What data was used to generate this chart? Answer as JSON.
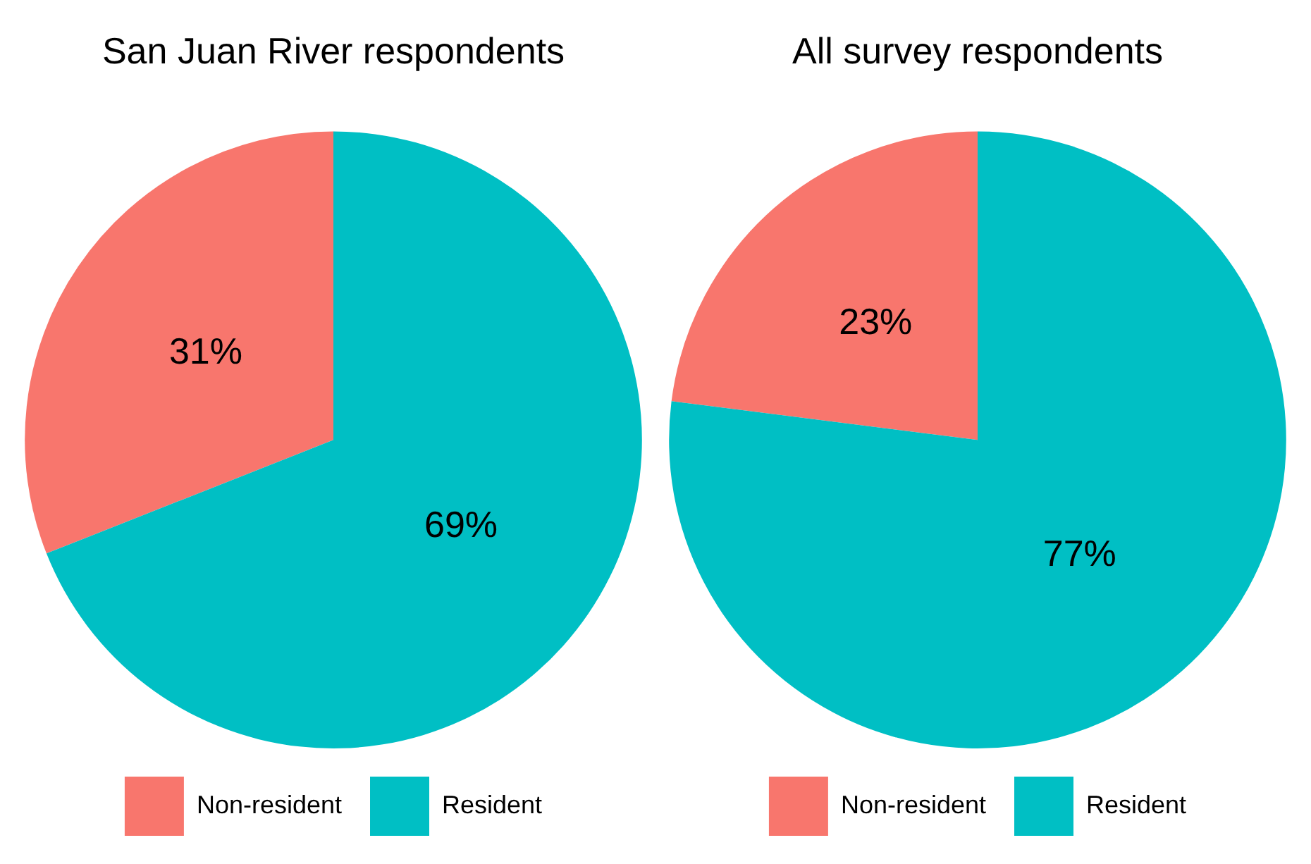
{
  "chart_data": [
    {
      "type": "pie",
      "title": "San Juan River respondents",
      "categories": [
        "Non-resident",
        "Resident"
      ],
      "values": [
        31,
        69
      ],
      "colors": [
        "#f8766d",
        "#00bfc4"
      ],
      "value_labels": [
        "31%",
        "69%"
      ],
      "legend": "bottom"
    },
    {
      "type": "pie",
      "title": "All survey respondents",
      "categories": [
        "Non-resident",
        "Resident"
      ],
      "values": [
        23,
        77
      ],
      "colors": [
        "#f8766d",
        "#00bfc4"
      ],
      "value_labels": [
        "23%",
        "77%"
      ],
      "legend": "bottom"
    }
  ]
}
